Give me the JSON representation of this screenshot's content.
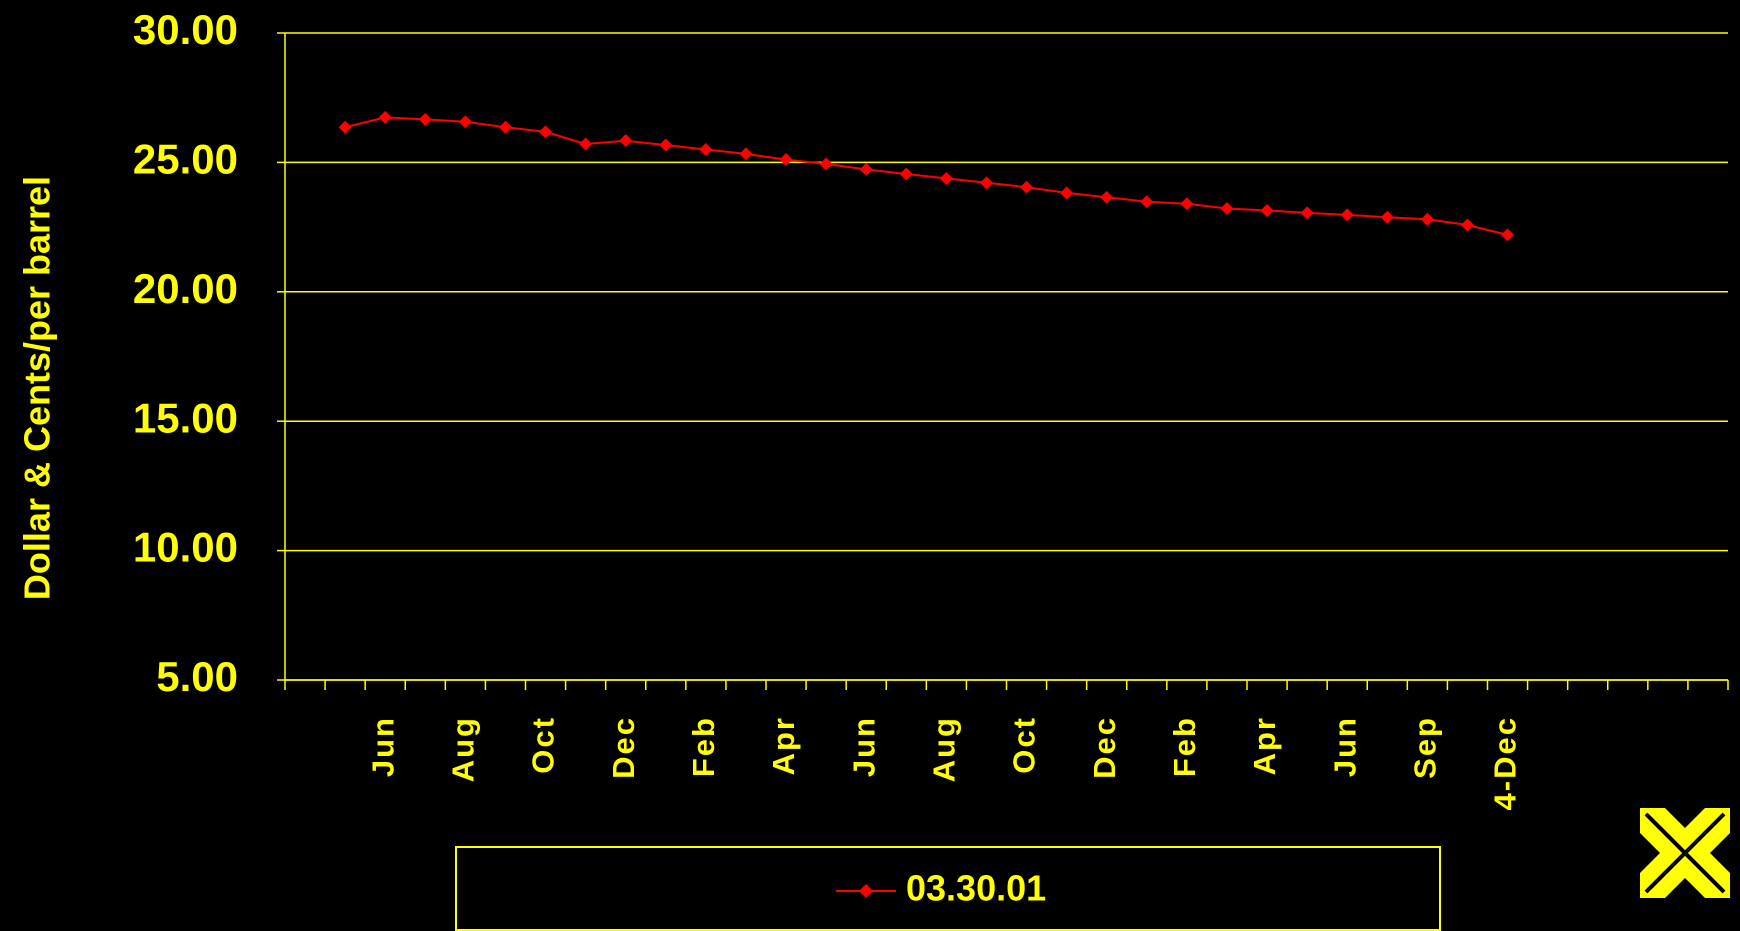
{
  "chart_data": {
    "type": "line",
    "y_label": "Dollar & Cents/per barrel",
    "categories": [
      null,
      null,
      "Jun",
      null,
      "Aug",
      null,
      "Oct",
      null,
      "Dec",
      null,
      "Feb",
      null,
      "Apr",
      null,
      "Jun",
      null,
      "Aug",
      null,
      "Oct",
      null,
      "Dec",
      null,
      "Feb",
      null,
      "Apr",
      null,
      "Jun",
      null,
      "Sep",
      null,
      "4-Dec",
      null,
      null,
      null,
      null,
      null
    ],
    "series": [
      {
        "name": "03.30.01",
        "color": "#ff0000",
        "values": [
          null,
          26.36,
          26.74,
          26.66,
          26.57,
          26.36,
          26.18,
          25.71,
          25.84,
          25.67,
          25.5,
          25.33,
          25.11,
          24.94,
          24.73,
          24.55,
          24.38,
          24.21,
          24.04,
          23.82,
          23.65,
          23.48,
          23.4,
          23.22,
          23.14,
          23.05,
          22.97,
          22.88,
          22.8,
          22.58,
          22.2,
          null,
          null,
          null,
          null,
          null
        ]
      }
    ],
    "ylim": [
      5,
      30
    ],
    "yticks": [
      {
        "value": 5,
        "label": "5.00"
      },
      {
        "value": 10,
        "label": "10.00"
      },
      {
        "value": 15,
        "label": "15.00"
      },
      {
        "value": 20,
        "label": "20.00"
      },
      {
        "value": 25,
        "label": "25.00"
      },
      {
        "value": 30,
        "label": "30.00"
      }
    ],
    "grid": true,
    "legend": "bottom"
  }
}
